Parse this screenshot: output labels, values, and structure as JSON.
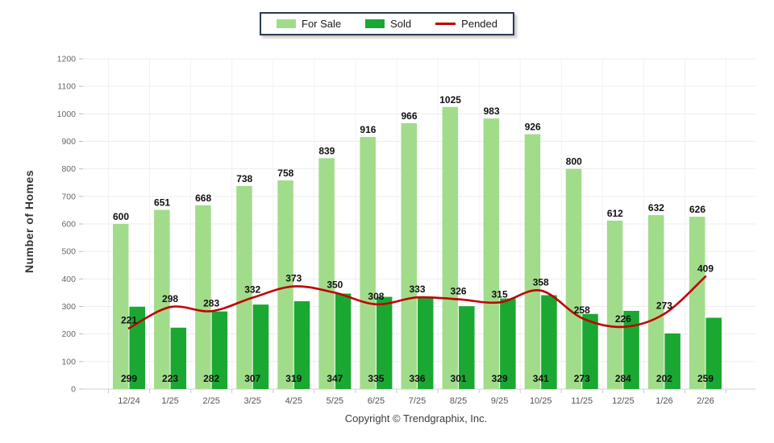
{
  "legend": {
    "border_color": "#2b3a55"
  },
  "y_axis": {
    "min": 0,
    "max": 1200,
    "step": 100
  },
  "footer": {
    "copyright": "Copyright © Trendgraphix, Inc."
  },
  "chart_data": {
    "type": "bar",
    "title": "",
    "xlabel": "",
    "ylabel": "Number of Homes",
    "ylim": [
      0,
      1200
    ],
    "ytick_step": 100,
    "grid": true,
    "legend_position": "top-center",
    "categories": [
      "12/24",
      "1/25",
      "2/25",
      "3/25",
      "4/25",
      "5/25",
      "6/25",
      "7/25",
      "8/25",
      "9/25",
      "10/25",
      "11/25",
      "12/25",
      "1/26",
      "2/26"
    ],
    "series": [
      {
        "name": "For Sale",
        "type": "bar",
        "color": "#A1DC8B",
        "values": [
          600,
          651,
          668,
          738,
          758,
          839,
          916,
          966,
          1025,
          983,
          926,
          800,
          612,
          632,
          626
        ]
      },
      {
        "name": "Sold",
        "type": "bar",
        "color": "#1AA832",
        "values": [
          299,
          223,
          282,
          307,
          319,
          347,
          335,
          336,
          301,
          329,
          341,
          273,
          284,
          202,
          259
        ]
      },
      {
        "name": "Pended",
        "type": "line",
        "color": "#C00000",
        "values": [
          221,
          298,
          283,
          332,
          373,
          350,
          308,
          333,
          326,
          315,
          358,
          258,
          226,
          273,
          409
        ]
      }
    ]
  }
}
